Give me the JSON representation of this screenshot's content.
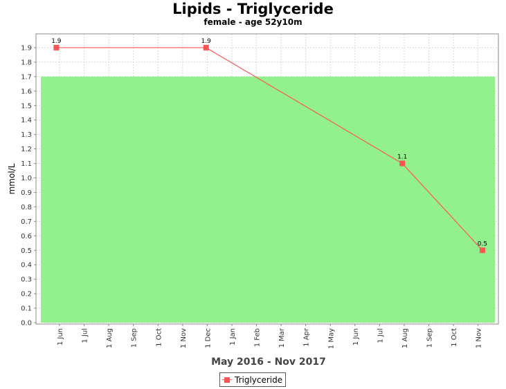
{
  "title": "Lipids - Triglyceride",
  "subtitle": "female - age 52y10m",
  "chart_data": {
    "type": "line",
    "title": "Lipids - Triglyceride",
    "subtitle": "female - age 52y10m",
    "xlabel": "May 2016 - Nov 2017",
    "ylabel": "mmol/L",
    "ylim": [
      0,
      1.95
    ],
    "yticks": [
      "0.0",
      "0.1",
      "0.2",
      "0.3",
      "0.4",
      "0.5",
      "0.6",
      "0.7",
      "0.8",
      "0.9",
      "1.0",
      "1.1",
      "1.2",
      "1.3",
      "1.4",
      "1.5",
      "1.6",
      "1.7",
      "1.8",
      "1.9"
    ],
    "xticks": [
      "1 Jun",
      "1 Jul",
      "1 Aug",
      "1 Sep",
      "1 Oct",
      "1 Nov",
      "1 Dec",
      "1 Jan",
      "1 Feb",
      "1 Mar",
      "1 Apr",
      "1 May",
      "1 Jun",
      "1 Jul",
      "1 Aug",
      "1 Sep",
      "1 Oct",
      "1 Nov"
    ],
    "grid": true,
    "reference_range": {
      "low": 0.0,
      "high": 1.7,
      "color": "#8cef87"
    },
    "series": [
      {
        "name": "Triglyceride",
        "color": "#ff5555",
        "points": [
          {
            "x": "2016-05-28",
            "y": 1.9,
            "label": "1.9"
          },
          {
            "x": "2016-12-01",
            "y": 1.9,
            "label": "1.9"
          },
          {
            "x": "2017-08-03",
            "y": 1.1,
            "label": "1.1"
          },
          {
            "x": "2017-11-11",
            "y": 0.5,
            "label": "0.5"
          }
        ]
      }
    ],
    "legend_position": "bottom"
  },
  "legend": {
    "label": "Triglyceride"
  }
}
